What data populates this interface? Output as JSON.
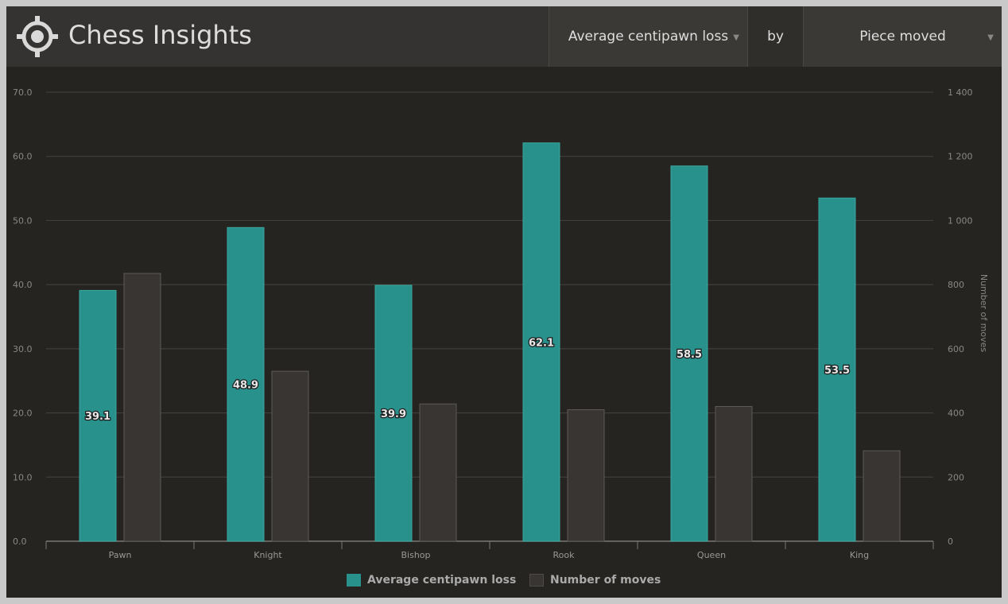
{
  "app": {
    "title": "Chess Insights"
  },
  "controls": {
    "metric_value": "Average centipawn loss",
    "by_label": "by",
    "dimension_value": "Piece moved"
  },
  "icons": {
    "logo": "crosshair-target-icon",
    "dropdown": "caret-down-icon"
  },
  "colors": {
    "loss": "#29918b",
    "moves": "#383532",
    "moves_border": "#5c5a58"
  },
  "chart_data": {
    "type": "bar",
    "categories": [
      "Pawn",
      "Knight",
      "Bishop",
      "Rook",
      "Queen",
      "King"
    ],
    "series": [
      {
        "name": "Average centipawn loss",
        "axis": "left",
        "values": [
          39.1,
          48.9,
          39.9,
          62.1,
          58.5,
          53.5
        ],
        "data_labels": [
          "39.1",
          "48.9",
          "39.9",
          "62.1",
          "58.5",
          "53.5"
        ]
      },
      {
        "name": "Number of moves",
        "axis": "right",
        "values": [
          835,
          530,
          428,
          410,
          420,
          282
        ]
      }
    ],
    "y_left": {
      "min": 0,
      "max": 70,
      "ticks": [
        0,
        10,
        20,
        30,
        40,
        50,
        60,
        70
      ],
      "tick_labels": [
        "0.0",
        "10.0",
        "20.0",
        "30.0",
        "40.0",
        "50.0",
        "60.0",
        "70.0"
      ]
    },
    "y_right": {
      "label": "Number of moves",
      "min": 0,
      "max": 1400,
      "ticks": [
        0,
        200,
        400,
        600,
        800,
        1000,
        1200,
        1400
      ],
      "tick_labels": [
        "0",
        "200",
        "400",
        "600",
        "800",
        "1 000",
        "1 200",
        "1 400"
      ]
    },
    "grid": true,
    "legend": "bottom-center"
  }
}
